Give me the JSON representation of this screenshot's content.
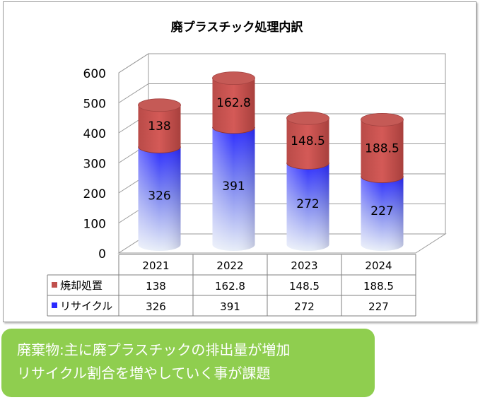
{
  "chart_data": {
    "type": "bar",
    "title": "廃プラスチック処理内訳",
    "categories": [
      "2021",
      "2022",
      "2023",
      "2024"
    ],
    "series": [
      {
        "name": "リサイクル",
        "values": [
          326,
          391,
          272,
          227
        ],
        "color": "#2a2aff"
      },
      {
        "name": "焼却処置",
        "values": [
          138,
          162.8,
          148.5,
          188.5
        ],
        "color": "#c0504d"
      }
    ],
    "ylim": [
      0,
      600
    ],
    "yticks": [
      "0",
      "100",
      "200",
      "300",
      "400",
      "500",
      "600"
    ],
    "stacked": true,
    "three_d": true,
    "grid": true,
    "legend": "data-table",
    "table_labels": {
      "recycle": [
        "326",
        "391",
        "272",
        "227"
      ],
      "incineration": [
        "138",
        "162.8",
        "148.5",
        "188.5"
      ]
    }
  },
  "callout": {
    "line1": "廃棄物:主に廃プラスチックの排出量が増加",
    "line2": "リサイクル割合を増やしていく事が課題"
  }
}
